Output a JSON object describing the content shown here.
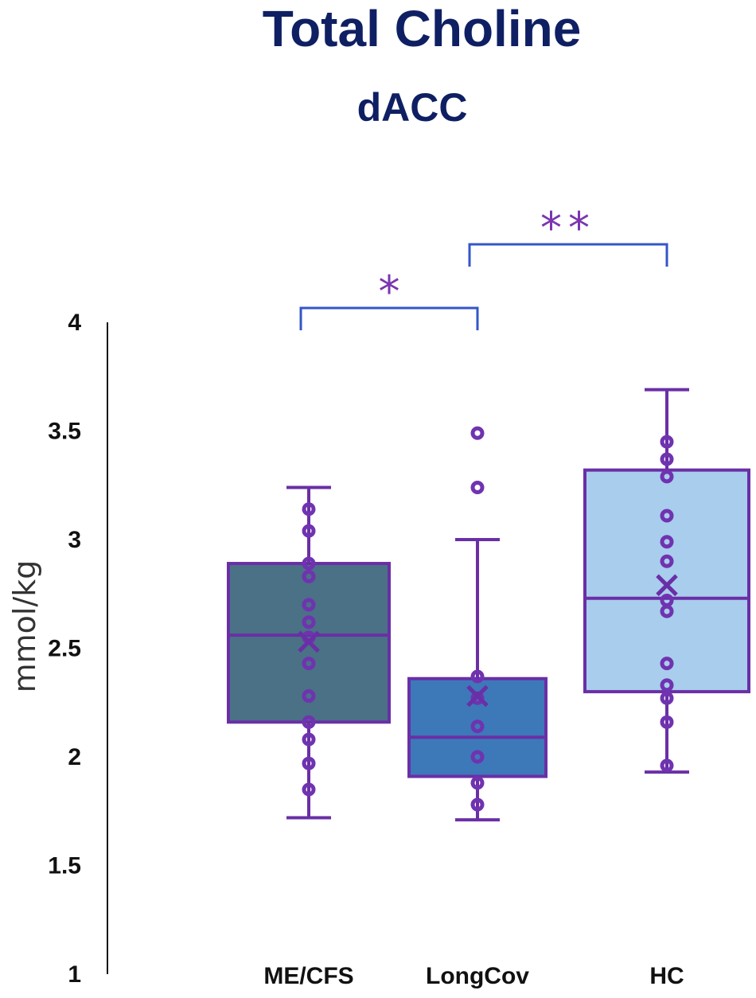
{
  "chart_data": {
    "type": "box",
    "title": "Total Choline",
    "subtitle": "dACC",
    "ylabel": "mmol/kg",
    "ylim": [
      1,
      4
    ],
    "yticks": [
      "1",
      "1.5",
      "2",
      "2.5",
      "3",
      "3.5",
      "4"
    ],
    "categories": [
      "ME/CFS",
      "LongCov",
      "HC"
    ],
    "groups": [
      {
        "name": "ME/CFS",
        "whisker_low": 1.72,
        "q1": 2.16,
        "median": 2.56,
        "q3": 2.89,
        "whisker_high": 3.24,
        "mean": 2.53,
        "points": [
          1.85,
          1.97,
          2.08,
          2.16,
          2.28,
          2.43,
          2.55,
          2.62,
          2.7,
          2.83,
          2.89,
          3.04,
          3.14
        ],
        "fill": "#4a7186"
      },
      {
        "name": "LongCov",
        "whisker_low": 1.71,
        "q1": 1.91,
        "median": 2.09,
        "q3": 2.36,
        "whisker_high": 3.0,
        "mean": 2.28,
        "points": [
          1.78,
          1.88,
          2.0,
          2.14,
          2.27,
          2.37
        ],
        "outliers": [
          3.24,
          3.49
        ],
        "fill": "#3d78b9"
      },
      {
        "name": "HC",
        "whisker_low": 1.93,
        "q1": 2.3,
        "median": 2.73,
        "q3": 3.32,
        "whisker_high": 3.69,
        "mean": 2.79,
        "points": [
          1.96,
          2.16,
          2.27,
          2.33,
          2.43,
          2.67,
          2.72,
          2.9,
          2.99,
          3.11,
          3.29,
          3.37,
          3.45
        ],
        "fill": "#a9cdec"
      }
    ],
    "significance": [
      {
        "from": "ME/CFS",
        "to": "LongCov",
        "label": "*"
      },
      {
        "from": "LongCov",
        "to": "HC",
        "label": "**"
      }
    ],
    "colors": {
      "box_stroke": "#6a2fa6",
      "point_stroke": "#7033b0",
      "bracket": "#3356c8",
      "star": "#7b35b0",
      "title": "#0f1f63",
      "axis": "#111111"
    }
  }
}
